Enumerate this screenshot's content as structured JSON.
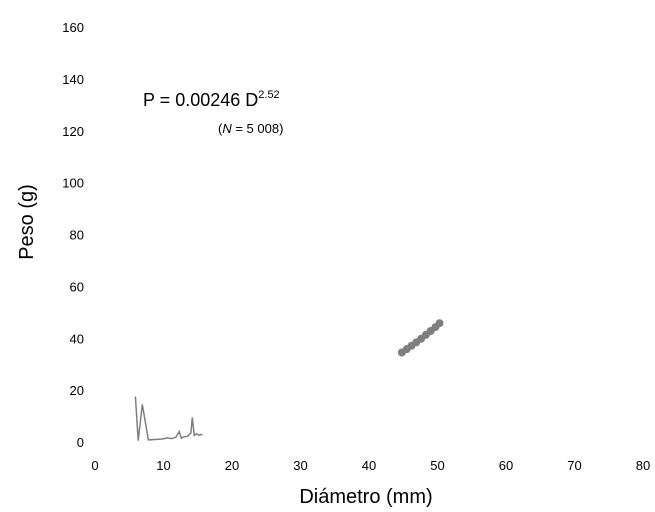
{
  "chart_data": {
    "type": "scatter",
    "title": "",
    "xlabel": "Diámetro  (mm)",
    "ylabel": "Peso  (g)",
    "xlim": [
      0,
      80
    ],
    "ylim": [
      0,
      160
    ],
    "x_ticks": [
      "0",
      "10",
      "20",
      "30",
      "40",
      "50",
      "60",
      "70",
      "80"
    ],
    "y_ticks": [
      "0",
      "20",
      "40",
      "60",
      "80",
      "100",
      "120",
      "140",
      "160"
    ],
    "grid": false,
    "legend": "none",
    "equation": {
      "prefix": "P = 0.00246 D",
      "exponent": "2.52"
    },
    "sample_size": {
      "open": "(",
      "symbol": "N",
      "rest": " = 5 008)"
    },
    "colors": {
      "points": "#7f7f7f",
      "residual_line": "#7f7f7f"
    },
    "series": [
      {
        "kind": "points",
        "x": [
          44.8,
          45.5,
          46.2,
          46.9,
          47.6,
          48.3,
          49.0,
          49.7,
          50.3
        ],
        "y": [
          34.5,
          35.8,
          37.1,
          38.4,
          39.8,
          41.3,
          42.8,
          44.3,
          45.8
        ]
      },
      {
        "kind": "line",
        "x": [
          5.9,
          6.3,
          6.9,
          7.8,
          9.0,
          10.0,
          10.5,
          11.2,
          11.8,
          12.3,
          12.6,
          13.0,
          13.5,
          14.0,
          14.2,
          14.5,
          14.8,
          15.2,
          15.7
        ],
        "y": [
          17.5,
          0.5,
          14.5,
          0.8,
          1.0,
          1.2,
          1.6,
          1.3,
          1.8,
          4.0,
          1.5,
          2.0,
          2.2,
          3.5,
          9.5,
          2.5,
          3.2,
          2.6,
          3.0
        ]
      }
    ]
  }
}
